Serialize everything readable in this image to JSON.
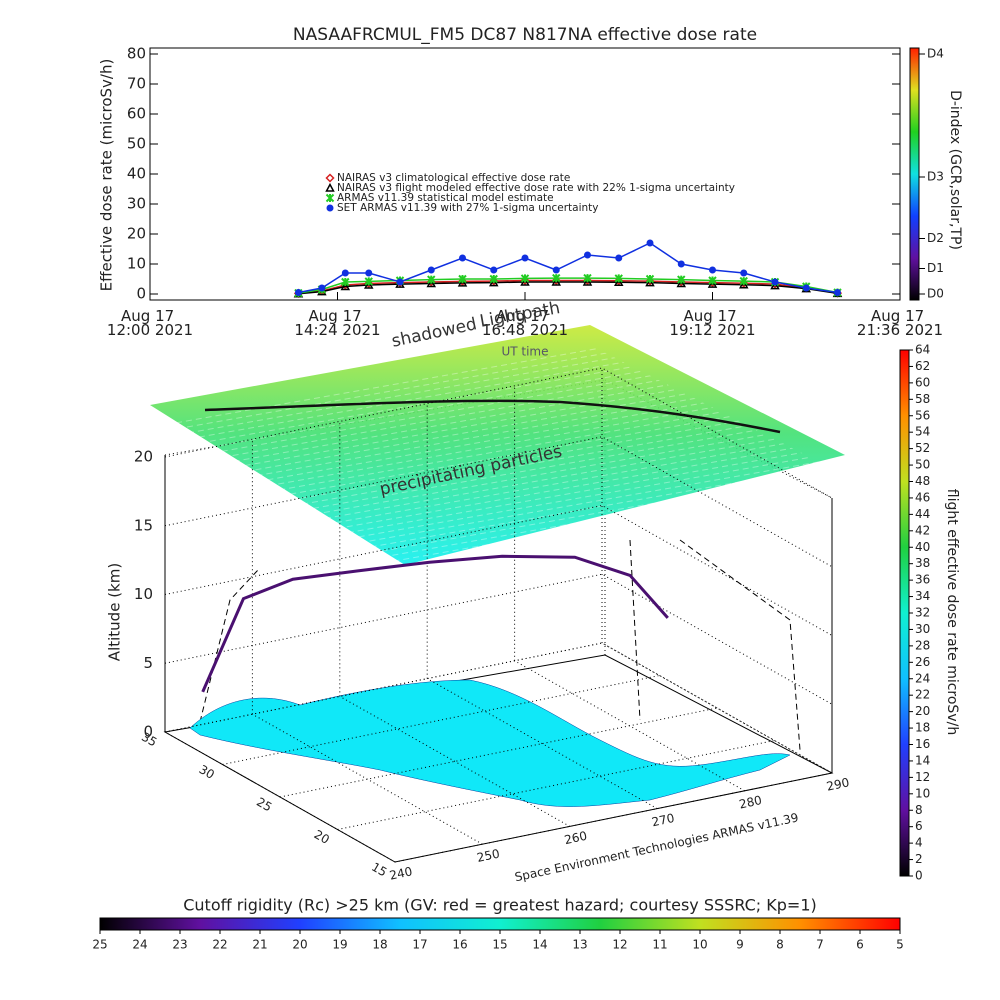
{
  "chart_data": [
    {
      "type": "line",
      "title": "NASAAFRCMUL_FM5 DC87 N817NA effective dose rate",
      "ylabel": "Effective dose rate (microSv/h)",
      "xlabel": "UT time",
      "xlim": [
        12,
        21.6
      ],
      "xticks": [
        {
          "value": 12,
          "label": "Aug 17 12:00 2021"
        },
        {
          "value": 14.4,
          "label": "Aug 17 14:24 2021"
        },
        {
          "value": 16.8,
          "label": "Aug 17 16:48 2021"
        },
        {
          "value": 19.2,
          "label": "Aug 17 19:12 2021"
        },
        {
          "value": 21.6,
          "label": "Aug 17 21:36 2021"
        }
      ],
      "ylim": [
        -2,
        82
      ],
      "yticks": [
        0,
        10,
        20,
        30,
        40,
        50,
        60,
        70,
        80
      ],
      "x": [
        13.9,
        14.2,
        14.5,
        14.8,
        15.2,
        15.6,
        16.0,
        16.4,
        16.8,
        17.2,
        17.6,
        18.0,
        18.4,
        18.8,
        19.2,
        19.6,
        20.0,
        20.4,
        20.8
      ],
      "series": [
        {
          "name": "NAIRAS v3 climatological effective dose rate",
          "color": "#d62020",
          "marker": "diamond",
          "values": [
            0.2,
            1,
            3,
            3.5,
            3.8,
            4,
            4.2,
            4.3,
            4.5,
            4.5,
            4.5,
            4.4,
            4.3,
            4,
            3.8,
            3.6,
            3.3,
            2,
            0.3
          ]
        },
        {
          "name": "NAIRAS v3 flight modeled effective dose rate with 22% 1-sigma uncertainty",
          "color": "#000000",
          "marker": "triangle",
          "values": [
            0.1,
            0.8,
            2.5,
            3,
            3.3,
            3.5,
            3.7,
            3.8,
            4,
            4,
            4,
            3.9,
            3.8,
            3.5,
            3.3,
            3.1,
            2.8,
            1.8,
            0.2
          ]
        },
        {
          "name": "ARMAS v11.39 statistical model estimate",
          "color": "#22cc22",
          "marker": "star",
          "values": [
            0.3,
            1.5,
            4,
            4.2,
            4.5,
            4.8,
            5,
            5,
            5.2,
            5.3,
            5.3,
            5.2,
            5,
            4.8,
            4.5,
            4.3,
            4,
            2.5,
            0.5
          ]
        },
        {
          "name": "SET ARMAS v11.39 with 27% 1-sigma uncertainty",
          "color": "#1030e0",
          "marker": "circle",
          "values": [
            0.5,
            2,
            7,
            7,
            4,
            8,
            12,
            8,
            12,
            8,
            13,
            12,
            17,
            10,
            8,
            7,
            4,
            2,
            0.5
          ]
        }
      ],
      "y2label": "D-index (GCR,solar,TP)",
      "y2lim": [
        -2,
        82
      ],
      "y2ticks": [
        {
          "value": 0,
          "label": "D0"
        },
        {
          "value": 8.5,
          "label": "D1"
        },
        {
          "value": 18.5,
          "label": "D2"
        },
        {
          "value": 39,
          "label": "D3"
        },
        {
          "value": 80,
          "label": "D4"
        }
      ],
      "y2colors": [
        "#000000",
        "#6010a0",
        "#1040ff",
        "#10e0e0",
        "#20d020",
        "#e0e020",
        "#ff2000"
      ]
    },
    {
      "type": "surface3d",
      "annotations": [
        "shadowed",
        "Lightpath",
        "precipitating particles"
      ],
      "zlabel": "Altitude (km)",
      "zlim": [
        0,
        20
      ],
      "zticks": [
        0,
        5,
        10,
        15,
        20
      ],
      "latlim": [
        15,
        35
      ],
      "latticks": [
        15,
        20,
        25,
        30,
        35
      ],
      "lonlim": [
        240,
        290
      ],
      "lonticks": [
        240,
        250,
        260,
        270,
        280,
        290
      ],
      "credit": "Space Environment Technologies ARMAS v11.39",
      "track": {
        "lon": [
          243,
          247,
          252,
          258,
          265,
          272,
          279,
          284,
          287
        ],
        "lat": [
          34,
          33.5,
          33,
          32,
          31,
          30,
          29,
          28,
          27
        ],
        "alt": [
          3,
          9.5,
          10.5,
          10.8,
          11,
          11,
          10.5,
          9,
          6
        ]
      }
    },
    {
      "type": "colorbar",
      "orientation": "vertical",
      "label": "flight effective dose rate microSv/h",
      "lim": [
        0,
        64
      ],
      "ticks": [
        0,
        2,
        4,
        6,
        8,
        10,
        12,
        14,
        16,
        18,
        20,
        22,
        24,
        26,
        28,
        30,
        32,
        34,
        36,
        38,
        40,
        42,
        44,
        46,
        48,
        50,
        52,
        54,
        56,
        58,
        60,
        62,
        64
      ],
      "colors": [
        "#000000",
        "#6010a0",
        "#2040ff",
        "#10c0ff",
        "#10f0d0",
        "#20d040",
        "#c0e020",
        "#ff9000",
        "#ff0000"
      ]
    },
    {
      "type": "colorbar",
      "orientation": "horizontal",
      "label": "Cutoff rigidity (Rc) >25 km (GV: red = greatest hazard; courtesy SSSRC; Kp=1)",
      "lim": [
        25,
        5
      ],
      "ticks": [
        25,
        24,
        23,
        22,
        21,
        20,
        19,
        18,
        17,
        16,
        15,
        14,
        13,
        12,
        11,
        10,
        9,
        8,
        7,
        6,
        5
      ],
      "colors": [
        "#000000",
        "#6010a0",
        "#2040ff",
        "#10c0ff",
        "#10f0d0",
        "#20d040",
        "#c0e020",
        "#ff9000",
        "#ff0000"
      ]
    }
  ]
}
